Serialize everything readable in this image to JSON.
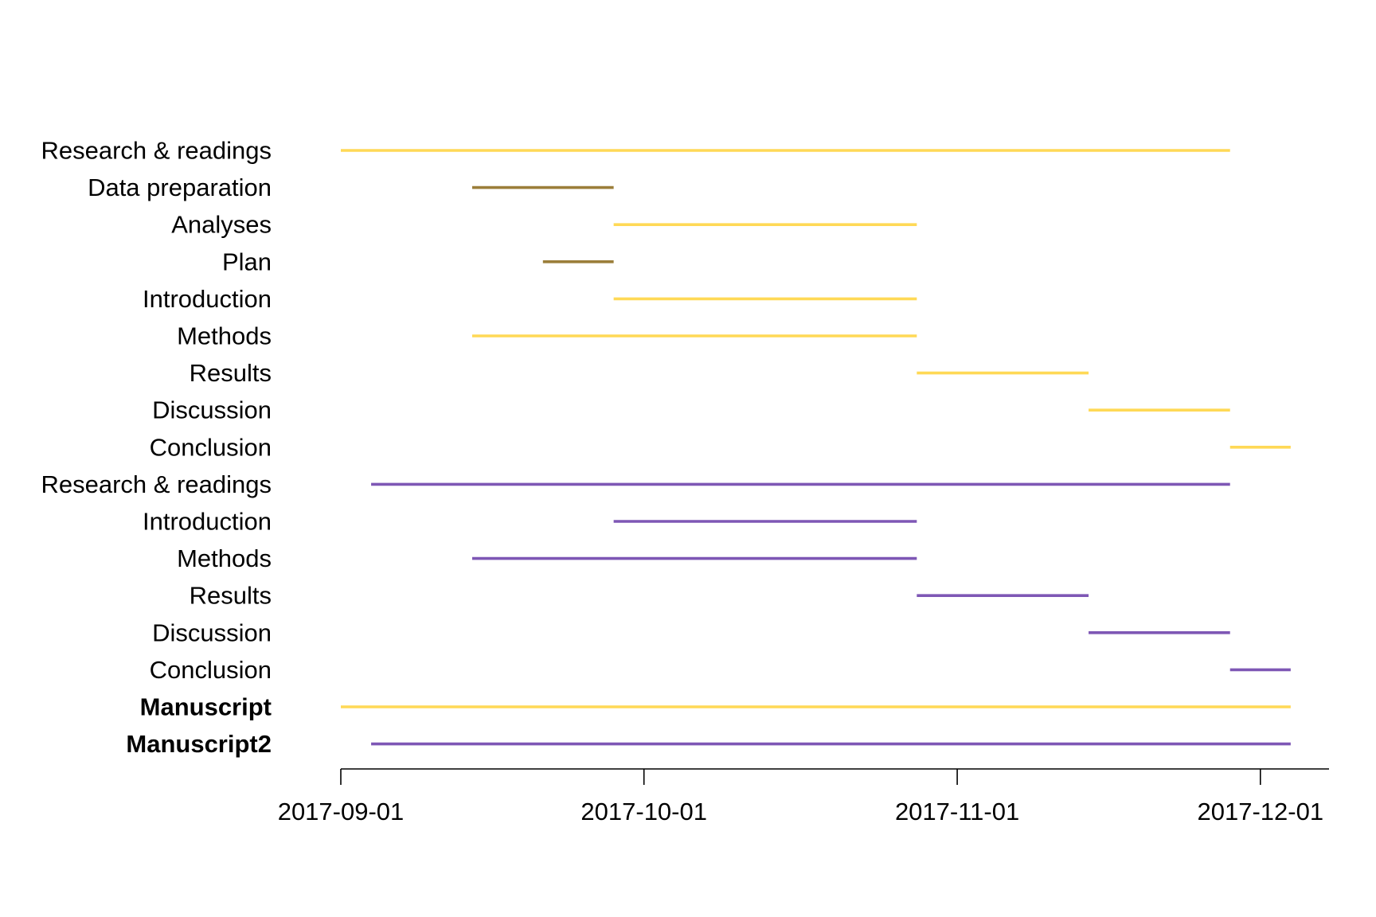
{
  "chart_data": {
    "type": "gantt",
    "title": "",
    "xlabel": "",
    "ylabel": "",
    "grid": false,
    "colors": {
      "yellow": "#FFD956",
      "olive": "#9B7E3A",
      "purple": "#7E57B5"
    },
    "x_ticks": [
      "2017-09-01",
      "2017-10-01",
      "2017-11-01",
      "2017-12-01"
    ],
    "xlim": [
      "2017-09-01",
      "2017-12-07"
    ],
    "tasks": [
      {
        "label": "Research & readings",
        "start": "2017-09-01",
        "end": "2017-11-28",
        "color": "#FFD956",
        "bold": false
      },
      {
        "label": "Data preparation",
        "start": "2017-09-14",
        "end": "2017-09-28",
        "color": "#9B7E3A",
        "bold": false
      },
      {
        "label": "Analyses",
        "start": "2017-09-28",
        "end": "2017-10-28",
        "color": "#FFD956",
        "bold": false
      },
      {
        "label": "Plan",
        "start": "2017-09-21",
        "end": "2017-09-28",
        "color": "#9B7E3A",
        "bold": false
      },
      {
        "label": "Introduction",
        "start": "2017-09-28",
        "end": "2017-10-28",
        "color": "#FFD956",
        "bold": false
      },
      {
        "label": "Methods",
        "start": "2017-09-14",
        "end": "2017-10-28",
        "color": "#FFD956",
        "bold": false
      },
      {
        "label": "Results",
        "start": "2017-10-28",
        "end": "2017-11-14",
        "color": "#FFD956",
        "bold": false
      },
      {
        "label": "Discussion",
        "start": "2017-11-14",
        "end": "2017-11-28",
        "color": "#FFD956",
        "bold": false
      },
      {
        "label": "Conclusion",
        "start": "2017-11-28",
        "end": "2017-12-04",
        "color": "#FFD956",
        "bold": false
      },
      {
        "label": "Research & readings",
        "start": "2017-09-04",
        "end": "2017-11-28",
        "color": "#7E57B5",
        "bold": false
      },
      {
        "label": "Introduction",
        "start": "2017-09-28",
        "end": "2017-10-28",
        "color": "#7E57B5",
        "bold": false
      },
      {
        "label": "Methods",
        "start": "2017-09-14",
        "end": "2017-10-28",
        "color": "#7E57B5",
        "bold": false
      },
      {
        "label": "Results",
        "start": "2017-10-28",
        "end": "2017-11-14",
        "color": "#7E57B5",
        "bold": false
      },
      {
        "label": "Discussion",
        "start": "2017-11-14",
        "end": "2017-11-28",
        "color": "#7E57B5",
        "bold": false
      },
      {
        "label": "Conclusion",
        "start": "2017-11-28",
        "end": "2017-12-04",
        "color": "#7E57B5",
        "bold": false
      },
      {
        "label": "Manuscript",
        "start": "2017-09-01",
        "end": "2017-12-04",
        "color": "#FFD956",
        "bold": true
      },
      {
        "label": "Manuscript2",
        "start": "2017-09-04",
        "end": "2017-12-04",
        "color": "#7E57B5",
        "bold": true
      }
    ]
  }
}
